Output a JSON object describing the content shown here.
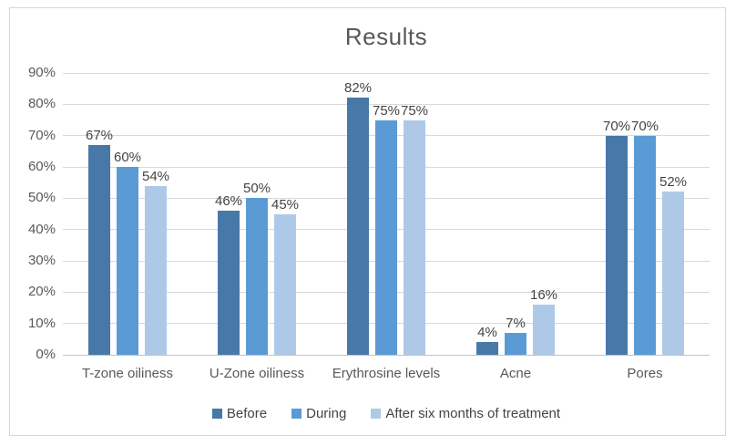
{
  "chart_data": {
    "type": "bar",
    "title": "Results",
    "categories": [
      "T-zone oiliness",
      "U-Zone oiliness",
      "Erythrosine levels",
      "Acne",
      "Pores"
    ],
    "series": [
      {
        "name": "Before",
        "color": "#4878a8",
        "values": [
          67,
          46,
          82,
          4,
          70
        ]
      },
      {
        "name": "During",
        "color": "#5b9bd5",
        "values": [
          60,
          50,
          75,
          7,
          70
        ]
      },
      {
        "name": "After six months of treatment",
        "color": "#aec9e8",
        "values": [
          54,
          45,
          75,
          16,
          52
        ]
      }
    ],
    "data_labels": [
      [
        "67%",
        "46%",
        "82%",
        "4%",
        "70%"
      ],
      [
        "60%",
        "50%",
        "75%",
        "7%",
        "70%"
      ],
      [
        "54%",
        "45%",
        "75%",
        "16%",
        "52%"
      ]
    ],
    "ylabel": "",
    "xlabel": "",
    "ylim": [
      0,
      90
    ],
    "ytick_step": 10,
    "ytick_labels": [
      "0%",
      "10%",
      "20%",
      "30%",
      "40%",
      "50%",
      "60%",
      "70%",
      "80%",
      "90%"
    ],
    "grid": true,
    "legend_position": "bottom",
    "colors": {
      "title_text": "#595959",
      "axis_text": "#595959",
      "data_label_text": "#444444",
      "gridline": "#d9d9d9",
      "axis_line": "#c3c3c3",
      "frame_border": "#d6d6d6",
      "background": "#ffffff"
    }
  }
}
